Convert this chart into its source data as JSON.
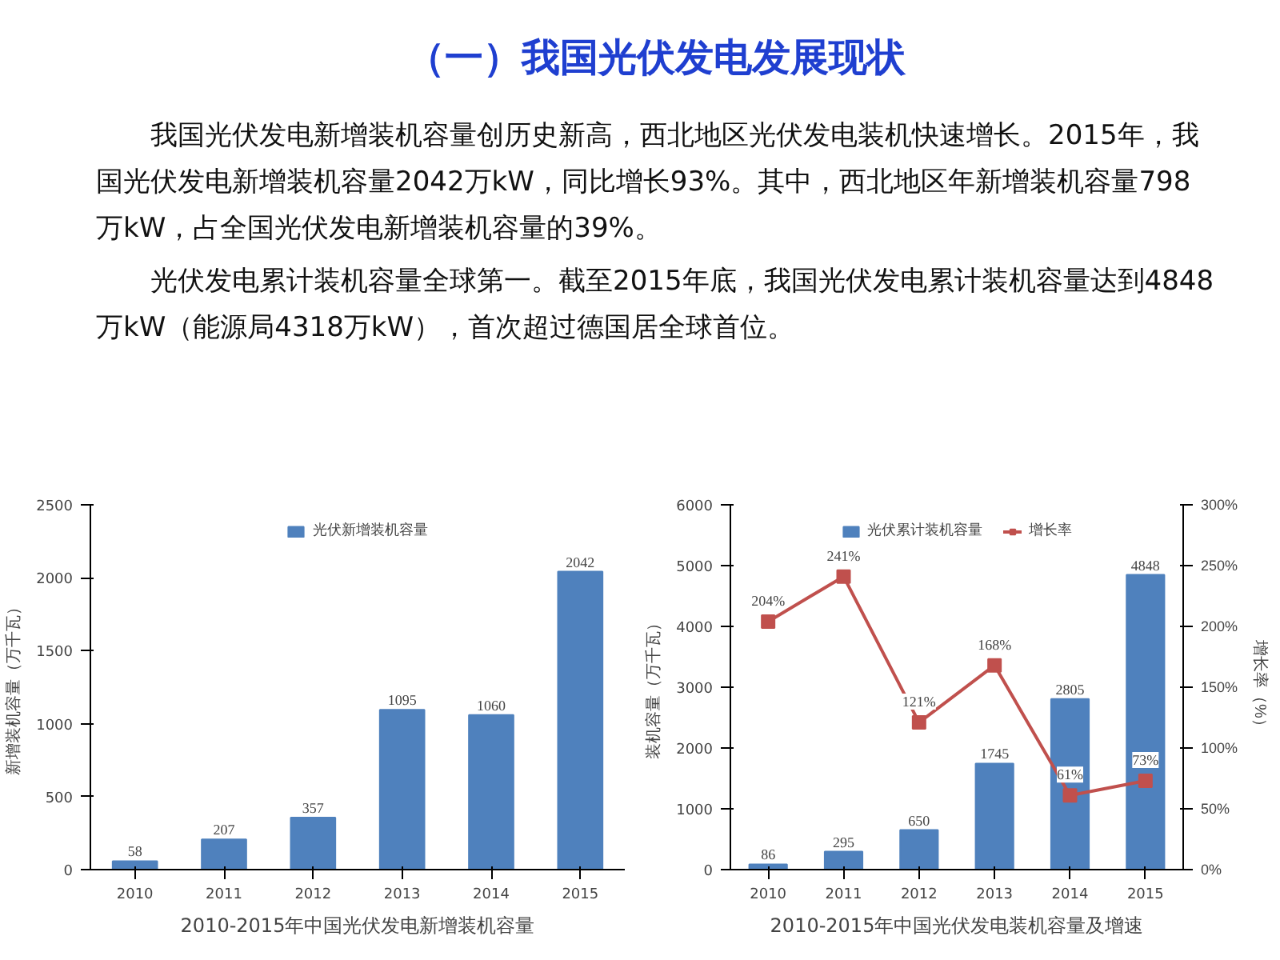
{
  "chart_data": [
    {
      "type": "other",
      "title": "（一）我国光伏发电发展现状",
      "annotations": [
        "我国光伏发电新增装机容量创历史新高，西北地区光伏发电装机快速增长。2015年，我国光伏发电新增装机容量2042万kW，同比增长93%。其中，西北地区年新增装机容量798万kW，占全国光伏发电新增装机容量的39%。",
        "光伏发电累计装机容量全球第一。截至2015年底，我国光伏发电累计装机容量达到4848万kW（能源局4318万kW），首次超过德国居全球首位。"
      ]
    },
    {
      "type": "bar",
      "categories": [
        "2010",
        "2011",
        "2012",
        "2013",
        "2014",
        "2015"
      ],
      "series": [
        {
          "name": "光伏新增装机容量",
          "color": "#4f81bd",
          "values": [
            58,
            207,
            357,
            1095,
            1060,
            2042
          ]
        }
      ],
      "ylabel": "新增装机容量（万千瓦）",
      "ylim": [
        0,
        2500
      ],
      "yticks": [
        0,
        500,
        1000,
        1500,
        2000,
        2500
      ],
      "data_labels": true,
      "legend": "top",
      "grid": false,
      "annotations": [
        "2010-2015年中国光伏发电新增装机容量"
      ]
    },
    {
      "type": "bar",
      "categories": [
        "2010",
        "2011",
        "2012",
        "2013",
        "2014",
        "2015"
      ],
      "series": [
        {
          "name": "光伏累计装机容量",
          "color": "#4f81bd",
          "values": [
            86,
            295,
            650,
            1745,
            2805,
            4848
          ]
        },
        {
          "name": "增长率",
          "type": "line",
          "axis": "y2",
          "color": "#c0504d",
          "marker": "square",
          "values": [
            204,
            241,
            121,
            168,
            61,
            73
          ],
          "value_labels": [
            "204%",
            "241%",
            "121%",
            "168%",
            "61%",
            "73%"
          ]
        }
      ],
      "ylabel": "装机容量（万千瓦）",
      "y2label": "增长率（%）",
      "ylim": [
        0,
        6000
      ],
      "yticks": [
        0,
        1000,
        2000,
        3000,
        4000,
        5000,
        6000
      ],
      "y2lim": [
        0,
        300
      ],
      "y2ticks": [
        {
          "value": 0,
          "label": "0%"
        },
        {
          "value": 50,
          "label": "50%"
        },
        {
          "value": 100,
          "label": "100%"
        },
        {
          "value": 150,
          "label": "150%"
        },
        {
          "value": 200,
          "label": "200%"
        },
        {
          "value": 250,
          "label": "250%"
        },
        {
          "value": 300,
          "label": "300%"
        }
      ],
      "data_labels": true,
      "legend": "top",
      "grid": false,
      "annotations": [
        "2010-2015年中国光伏发电装机容量及增速"
      ]
    }
  ]
}
